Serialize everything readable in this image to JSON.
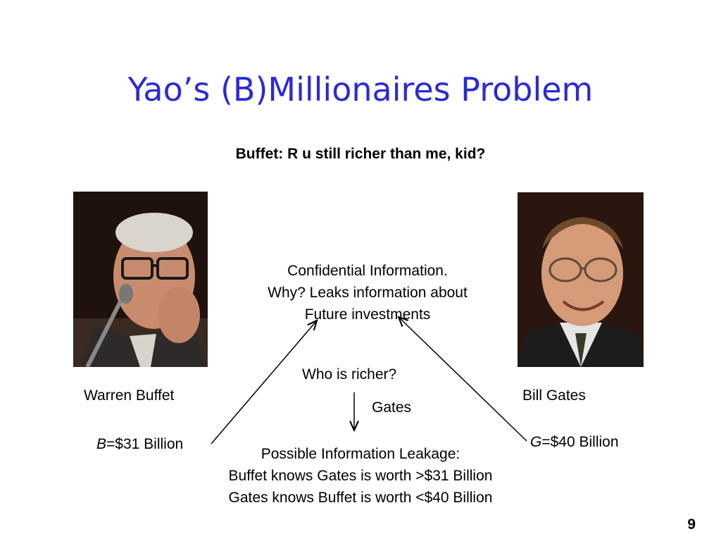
{
  "slide": {
    "title": "Yao’s (B)Millionaires Problem",
    "subtitle": "Buffet: R u still richer than me, kid?",
    "confidential": {
      "line1": "Confidential Information.",
      "line2": "Why? Leaks information about",
      "line3": "Future investments"
    },
    "question": "Who is richer?",
    "answer": "Gates",
    "left_person": {
      "name": "Warren Buffet",
      "var": "B",
      "value": "=$31 Billion"
    },
    "right_person": {
      "name": "Bill Gates",
      "var": "G",
      "value": "=$40 Billion"
    },
    "leakage": {
      "line1": "Possible Information Leakage:",
      "line2": "Buffet knows Gates is worth >$31 Billion",
      "line3": "Gates knows Buffet is worth <$40 Billion"
    },
    "page_number": "9"
  },
  "colors": {
    "title": "#2a2ad6"
  }
}
